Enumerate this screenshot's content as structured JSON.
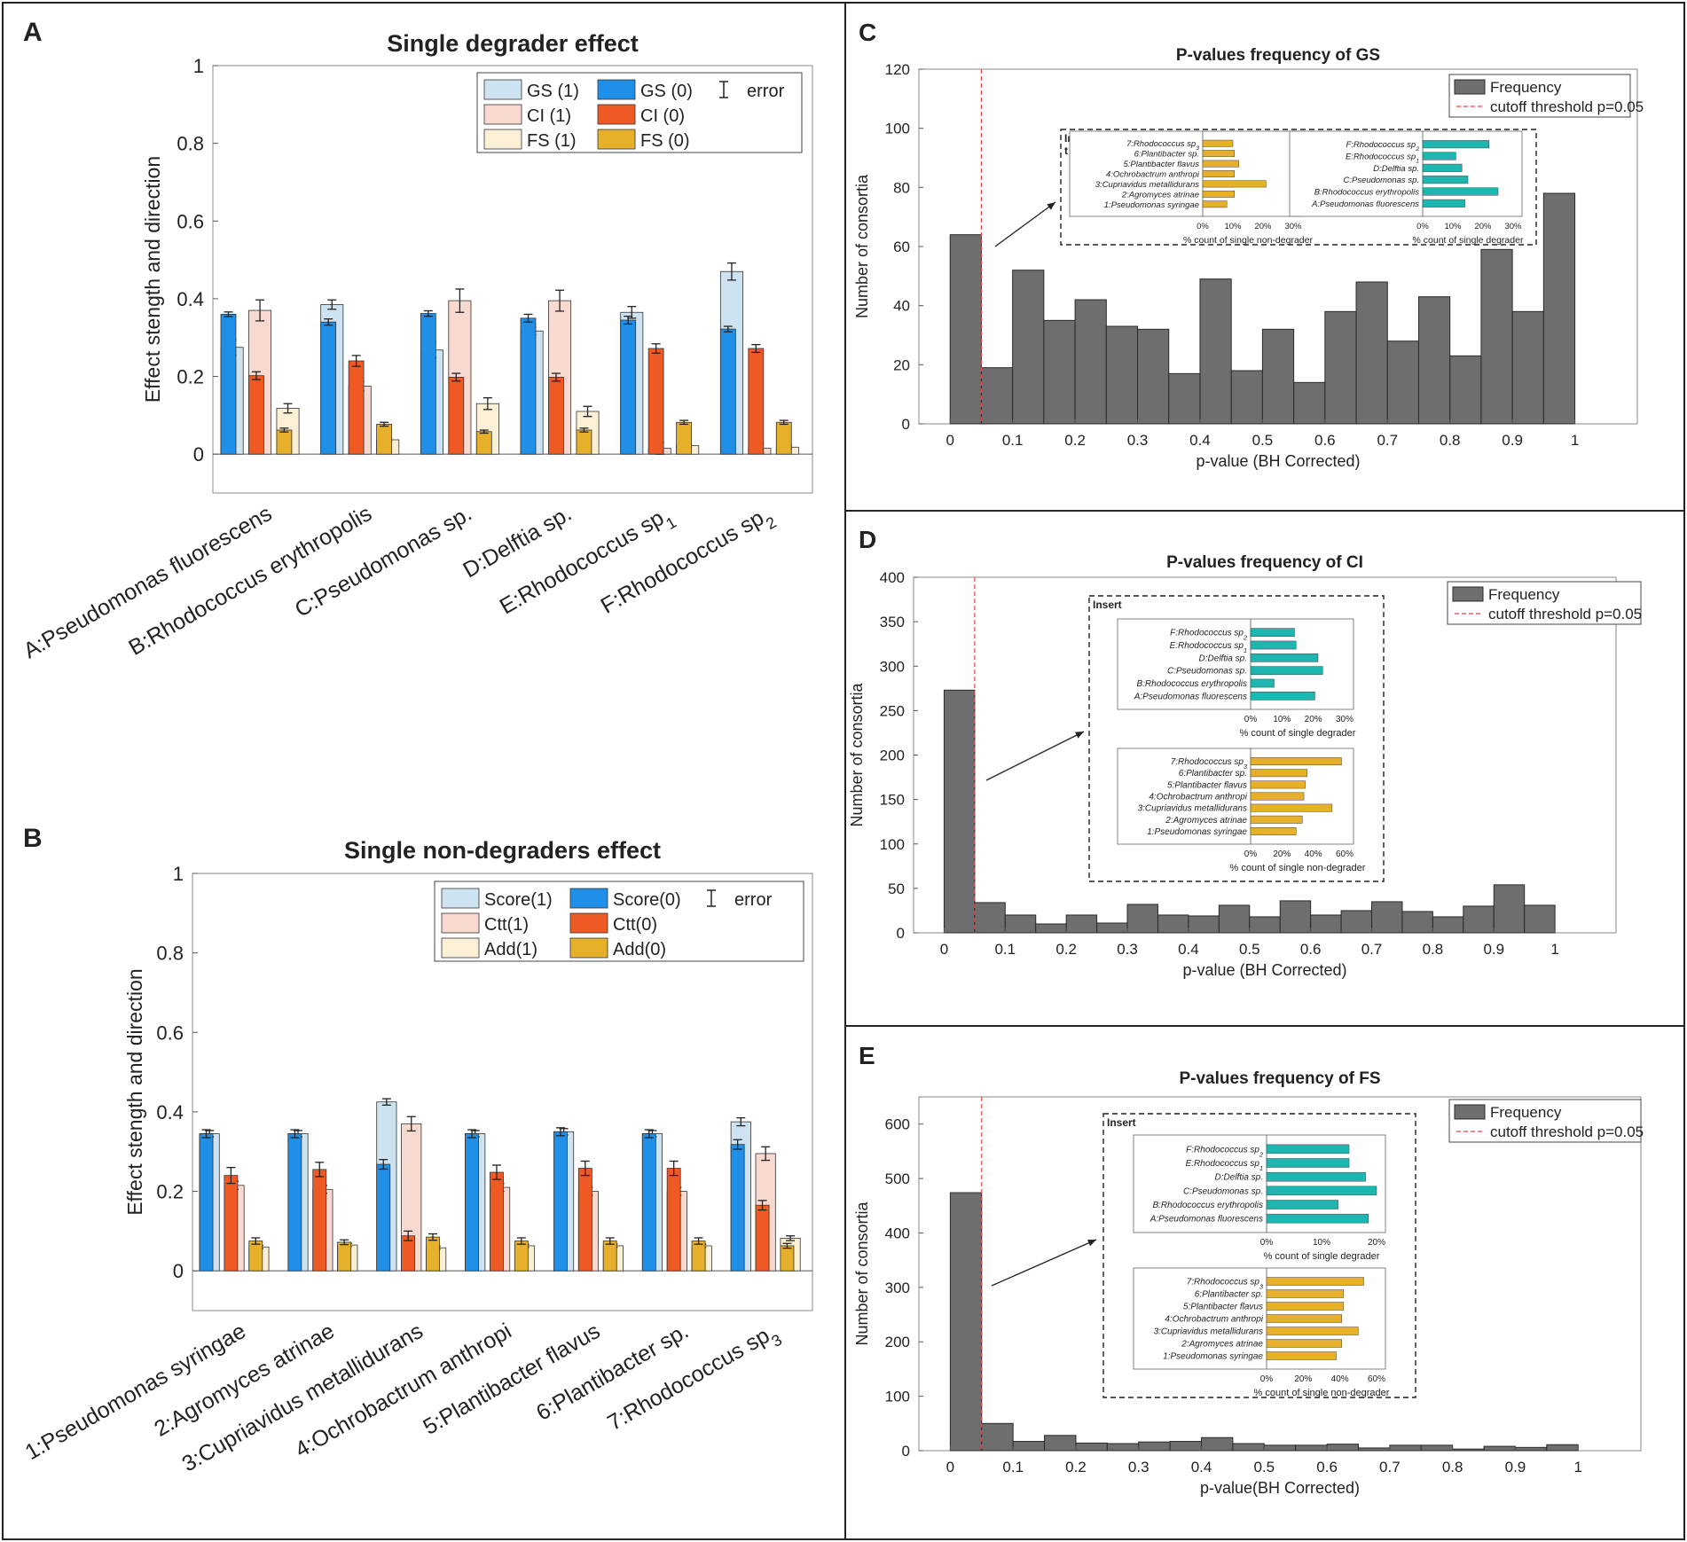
{
  "panels": {
    "A": {
      "letter": "A",
      "chart_data": {
        "type": "bar",
        "title": "Single degrader effect",
        "ylabel": "Effect stength and direction",
        "ylim": [
          -0.1,
          1.0
        ],
        "yticks": [
          0,
          0.2,
          0.4,
          0.6,
          0.8,
          1
        ],
        "categories": [
          {
            "main": "A:Pseudomonas fluorescens",
            "sub": ""
          },
          {
            "main": "B:Rhodococcus erythropolis",
            "sub": ""
          },
          {
            "main": "C:Pseudomonas sp.",
            "sub": ""
          },
          {
            "main": "D:Delftia sp.",
            "sub": ""
          },
          {
            "main": "E:Rhodococcus sp",
            "sub": "1"
          },
          {
            "main": "F:Rhodococcus sp",
            "sub": "2"
          }
        ],
        "legend": {
          "items": [
            {
              "label": "GS (1)",
              "color": "#cde3f2"
            },
            {
              "label": "GS (0)",
              "color": "#1f8fe8"
            },
            {
              "label": "CI (1)",
              "color": "#f8d9cf"
            },
            {
              "label": "CI (0)",
              "color": "#ef5a24"
            },
            {
              "label": "FS (1)",
              "color": "#fbf0d5"
            },
            {
              "label": "FS (0)",
              "color": "#e6b02a"
            }
          ],
          "error_label": "error"
        },
        "series": [
          {
            "name": "GS (1)",
            "values": [
              0.275,
              0.385,
              0.268,
              0.317,
              0.365,
              0.47
            ],
            "errors": [
              0.02,
              0.012,
              0.02,
              0.01,
              0.015,
              0.022
            ]
          },
          {
            "name": "GS (0)",
            "values": [
              0.36,
              0.34,
              0.362,
              0.35,
              0.345,
              0.322
            ],
            "errors": [
              0.006,
              0.008,
              0.007,
              0.01,
              0.01,
              0.007
            ]
          },
          {
            "name": "CI (1)",
            "values": [
              0.37,
              0.175,
              0.395,
              0.395,
              0.015,
              0.015
            ],
            "errors": [
              0.027,
              0.012,
              0.03,
              0.027,
              0.015,
              0.012
            ]
          },
          {
            "name": "CI (0)",
            "values": [
              0.202,
              0.24,
              0.198,
              0.198,
              0.272,
              0.272
            ],
            "errors": [
              0.01,
              0.014,
              0.01,
              0.01,
              0.012,
              0.01
            ]
          },
          {
            "name": "FS (1)",
            "values": [
              0.118,
              0.037,
              0.13,
              0.11,
              0.022,
              0.018
            ],
            "errors": [
              0.012,
              0.003,
              0.015,
              0.013,
              0.004,
              0.004
            ]
          },
          {
            "name": "FS (0)",
            "values": [
              0.062,
              0.077,
              0.058,
              0.062,
              0.082,
              0.082
            ],
            "errors": [
              0.005,
              0.005,
              0.004,
              0.005,
              0.005,
              0.005
            ]
          }
        ]
      }
    },
    "B": {
      "letter": "B",
      "chart_data": {
        "type": "bar",
        "title": "Single non-degraders effect",
        "ylabel": "Effect stength and direction",
        "ylim": [
          -0.1,
          1.0
        ],
        "yticks": [
          0,
          0.2,
          0.4,
          0.6,
          0.8,
          1
        ],
        "categories": [
          {
            "main": "1:Pseudomonas syringae",
            "sub": ""
          },
          {
            "main": "2:Agromyces atrinae",
            "sub": ""
          },
          {
            "main": "3:Cupriavidus metallidurans",
            "sub": ""
          },
          {
            "main": "4:Ochrobactrum anthropi",
            "sub": ""
          },
          {
            "main": "5:Plantibacter flavus",
            "sub": ""
          },
          {
            "main": "6:Plantibacter sp.",
            "sub": ""
          },
          {
            "main": "7:Rhodococcus sp",
            "sub": "3"
          }
        ],
        "legend": {
          "items": [
            {
              "label": "Score(1)",
              "color": "#cde3f2"
            },
            {
              "label": "Score(0)",
              "color": "#1f8fe8"
            },
            {
              "label": "Ctt(1)",
              "color": "#f8d9cf"
            },
            {
              "label": "Ctt(0)",
              "color": "#ef5a24"
            },
            {
              "label": "Add(1)",
              "color": "#fbf0d5"
            },
            {
              "label": "Add(0)",
              "color": "#e6b02a"
            }
          ],
          "error_label": "error"
        },
        "series": [
          {
            "name": "Score(1)",
            "values": [
              0.345,
              0.345,
              0.425,
              0.345,
              0.35,
              0.345,
              0.375
            ],
            "errors": [
              0.008,
              0.008,
              0.008,
              0.008,
              0.008,
              0.008,
              0.01
            ]
          },
          {
            "name": "Score(0)",
            "values": [
              0.345,
              0.345,
              0.268,
              0.345,
              0.35,
              0.345,
              0.318
            ],
            "errors": [
              0.01,
              0.01,
              0.012,
              0.01,
              0.01,
              0.01,
              0.012
            ]
          },
          {
            "name": "Ctt(1)",
            "values": [
              0.215,
              0.205,
              0.37,
              0.21,
              0.2,
              0.2,
              0.295
            ],
            "errors": [
              0.01,
              0.01,
              0.018,
              0.01,
              0.01,
              0.01,
              0.017
            ]
          },
          {
            "name": "Ctt(0)",
            "values": [
              0.24,
              0.255,
              0.088,
              0.248,
              0.258,
              0.258,
              0.165
            ],
            "errors": [
              0.02,
              0.018,
              0.012,
              0.018,
              0.018,
              0.018,
              0.012
            ]
          },
          {
            "name": "Add(1)",
            "values": [
              0.06,
              0.065,
              0.058,
              0.063,
              0.063,
              0.063,
              0.082
            ],
            "errors": [
              0.004,
              0.004,
              0.004,
              0.004,
              0.004,
              0.004,
              0.006
            ]
          },
          {
            "name": "Add(0)",
            "values": [
              0.075,
              0.072,
              0.085,
              0.075,
              0.075,
              0.075,
              0.063
            ],
            "errors": [
              0.008,
              0.006,
              0.008,
              0.008,
              0.008,
              0.008,
              0.006
            ]
          }
        ]
      }
    },
    "C": {
      "letter": "C",
      "chart_data": {
        "type": "bar",
        "subtype": "histogram",
        "title": "P-values frequency of GS",
        "xlabel": "p-value (BH Corrected)",
        "ylabel": "Number of consortia",
        "ylim": [
          0,
          120
        ],
        "yticks": [
          0,
          20,
          40,
          60,
          80,
          100,
          120
        ],
        "xlim": [
          -0.05,
          1.1
        ],
        "xticks": [
          0,
          0.1,
          0.2,
          0.3,
          0.4,
          0.5,
          0.6,
          0.7,
          0.8,
          0.9,
          1
        ],
        "bin_width": 0.05,
        "bin_start": 0,
        "values": [
          64,
          19,
          52,
          35,
          42,
          33,
          32,
          17,
          49,
          18,
          32,
          14,
          38,
          48,
          28,
          43,
          23,
          59,
          38,
          78
        ],
        "cutoff": 0.05,
        "legend": {
          "frequency_label": "Frequency",
          "cutoff_label": "cutoff threshold p=0.05"
        },
        "inset": {
          "title": "Inser\nt",
          "left": {
            "xlabel": "% count of single non-degrader",
            "xticks": [
              "0%",
              "10%",
              "20%",
              "30%"
            ],
            "xmax": 30,
            "color": "#e6b02a",
            "bars": [
              {
                "main": "7:Rhodococcus sp",
                "sub": "3",
                "value": 10
              },
              {
                "main": "6:Plantibacter sp.",
                "sub": "",
                "value": 10.5
              },
              {
                "main": "5:Plantibacter flavus",
                "sub": "",
                "value": 12
              },
              {
                "main": "4:Ochrobactrum anthropi",
                "sub": "",
                "value": 10.5
              },
              {
                "main": "3:Cupriavidus metallidurans",
                "sub": "",
                "value": 21
              },
              {
                "main": "2:Agromyces atrinae",
                "sub": "",
                "value": 10.5
              },
              {
                "main": "1:Pseudomonas syringae",
                "sub": "",
                "value": 8
              }
            ]
          },
          "right": {
            "xlabel": "% count of single degrader",
            "xticks": [
              "0%",
              "10%",
              "20%",
              "30%"
            ],
            "xmax": 30,
            "color": "#1fb5b0",
            "bars": [
              {
                "main": "F:Rhodococcus sp",
                "sub": "2",
                "value": 22
              },
              {
                "main": "E:Rhodococcus sp",
                "sub": "1",
                "value": 11
              },
              {
                "main": "D:Delftia sp.",
                "sub": "",
                "value": 13
              },
              {
                "main": "C:Pseudomonas sp.",
                "sub": "",
                "value": 15
              },
              {
                "main": "B:Rhodococcus erythropolis",
                "sub": "",
                "value": 25
              },
              {
                "main": "A:Pseudomonas fluorescens",
                "sub": "",
                "value": 14
              }
            ]
          }
        }
      }
    },
    "D": {
      "letter": "D",
      "chart_data": {
        "type": "bar",
        "subtype": "histogram",
        "title": "P-values frequency of CI",
        "xlabel": "p-value (BH Corrected)",
        "ylabel": "Number of consortia",
        "ylim": [
          0,
          400
        ],
        "yticks": [
          0,
          50,
          100,
          150,
          200,
          250,
          300,
          350,
          400
        ],
        "xlim": [
          -0.05,
          1.1
        ],
        "xticks": [
          0,
          0.1,
          0.2,
          0.3,
          0.4,
          0.5,
          0.6,
          0.7,
          0.8,
          0.9,
          1
        ],
        "bin_width": 0.05,
        "bin_start": 0,
        "values": [
          273,
          34,
          20,
          10,
          20,
          11,
          32,
          20,
          19,
          31,
          18,
          36,
          20,
          25,
          35,
          24,
          18,
          30,
          54,
          31
        ],
        "cutoff": 0.05,
        "legend": {
          "frequency_label": "Frequency",
          "cutoff_label": "cutoff threshold p=0.05"
        },
        "inset": {
          "title": "Insert",
          "top": {
            "xlabel": "% count of single degrader",
            "xticks": [
              "0%",
              "10%",
              "20%",
              "30%"
            ],
            "xmax": 30,
            "color": "#1fb5b0",
            "bars": [
              {
                "main": "F:Rhodococcus sp",
                "sub": "2",
                "value": 14
              },
              {
                "main": "E:Rhodococcus sp",
                "sub": "1",
                "value": 14.5
              },
              {
                "main": "D:Delftia sp.",
                "sub": "",
                "value": 21.5
              },
              {
                "main": "C:Pseudomonas sp.",
                "sub": "",
                "value": 23
              },
              {
                "main": "B:Rhodococcus erythropolis",
                "sub": "",
                "value": 7.5
              },
              {
                "main": "A:Pseudomonas fluorescens",
                "sub": "",
                "value": 20.5
              }
            ]
          },
          "bottom": {
            "xlabel": "% count of single non-degrader",
            "xticks": [
              "0%",
              "20%",
              "40%",
              "60%"
            ],
            "xmax": 60,
            "color": "#e6b02a",
            "bars": [
              {
                "main": "7:Rhodococcus sp",
                "sub": "3",
                "value": 58
              },
              {
                "main": "6:Plantibacter sp.",
                "sub": "",
                "value": 36
              },
              {
                "main": "5:Plantibacter flavus",
                "sub": "",
                "value": 35
              },
              {
                "main": "4:Ochrobactrum anthropi",
                "sub": "",
                "value": 34
              },
              {
                "main": "3:Cupriavidus metallidurans",
                "sub": "",
                "value": 52
              },
              {
                "main": "2:Agromyces atrinae",
                "sub": "",
                "value": 33
              },
              {
                "main": "1:Pseudomonas syringae",
                "sub": "",
                "value": 29
              }
            ]
          }
        }
      }
    },
    "E": {
      "letter": "E",
      "chart_data": {
        "type": "bar",
        "subtype": "histogram",
        "title": "P-values frequency of FS",
        "xlabel": "p-value(BH Corrected)",
        "ylabel": "Number of consortia",
        "ylim": [
          0,
          650
        ],
        "yticks": [
          0,
          100,
          200,
          300,
          400,
          500,
          600
        ],
        "xlim": [
          -0.05,
          1.1
        ],
        "xticks": [
          0,
          0.1,
          0.2,
          0.3,
          0.4,
          0.5,
          0.6,
          0.7,
          0.8,
          0.9,
          1
        ],
        "bin_width": 0.05,
        "bin_start": 0,
        "values": [
          474,
          50,
          17,
          28,
          14,
          13,
          16,
          17,
          24,
          13,
          10,
          10,
          12,
          5,
          10,
          10,
          3,
          8,
          6,
          11
        ],
        "cutoff": 0.05,
        "legend": {
          "frequency_label": "Frequency",
          "cutoff_label": "cutoff threshold p=0.05"
        },
        "inset": {
          "title": "Insert",
          "top": {
            "xlabel": "% count of single degrader",
            "xticks": [
              "0%",
              "10%",
              "20%"
            ],
            "xmax": 20,
            "color": "#1fb5b0",
            "bars": [
              {
                "main": "F:Rhodococcus sp",
                "sub": "2",
                "value": 15
              },
              {
                "main": "E:Rhodococcus sp",
                "sub": "1",
                "value": 15
              },
              {
                "main": "D:Delftia sp.",
                "sub": "",
                "value": 18
              },
              {
                "main": "C:Pseudomonas sp.",
                "sub": "",
                "value": 20
              },
              {
                "main": "B:Rhodococcus erythropolis",
                "sub": "",
                "value": 13
              },
              {
                "main": "A:Pseudomonas fluorescens",
                "sub": "",
                "value": 18.5
              }
            ]
          },
          "bottom": {
            "xlabel": "% count of single non-degrader",
            "xticks": [
              "0%",
              "20%",
              "40%",
              "60%"
            ],
            "xmax": 60,
            "color": "#e6b02a",
            "bars": [
              {
                "main": "7:Rhodococcus sp",
                "sub": "3",
                "value": 53
              },
              {
                "main": "6:Plantibacter sp.",
                "sub": "",
                "value": 42
              },
              {
                "main": "5:Plantibacter flavus",
                "sub": "",
                "value": 42
              },
              {
                "main": "4:Ochrobactrum anthropi",
                "sub": "",
                "value": 41
              },
              {
                "main": "3:Cupriavidus metallidurans",
                "sub": "",
                "value": 50
              },
              {
                "main": "2:Agromyces atrinae",
                "sub": "",
                "value": 41
              },
              {
                "main": "1:Pseudomonas syringae",
                "sub": "",
                "value": 38
              }
            ]
          }
        }
      }
    }
  }
}
